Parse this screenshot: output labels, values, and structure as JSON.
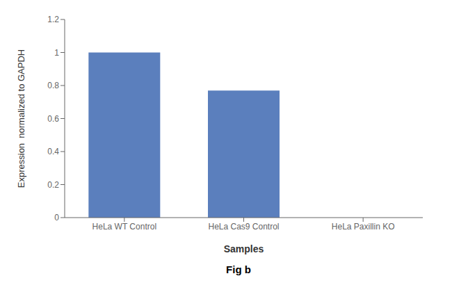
{
  "chart_data": {
    "type": "bar",
    "title": "Fig b",
    "categories": [
      "HeLa WT Control",
      "HeLa Cas9 Control",
      "HeLa Paxillin KO"
    ],
    "values": [
      1.0,
      0.77,
      0.0
    ],
    "color": "#5b7fbd",
    "xlabel": "Samples",
    "ylabel": "Expression  normalized to GAPDH",
    "ylim": [
      0,
      1.2
    ],
    "yticks": [
      0,
      0.2,
      0.4,
      0.6,
      0.8,
      1.0,
      1.2
    ]
  }
}
